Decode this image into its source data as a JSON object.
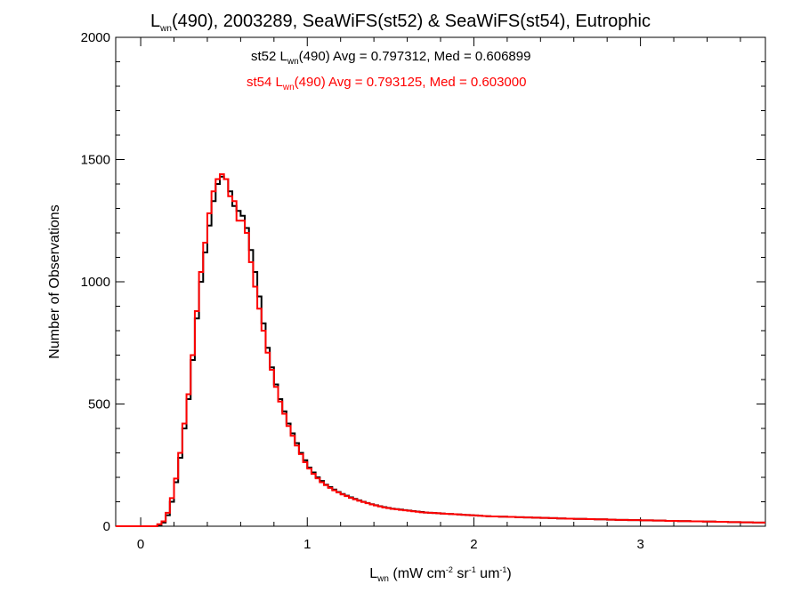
{
  "chart_data": {
    "type": "line",
    "title": {
      "base": "L",
      "sub": "wn",
      "rest": "(490), 2003289, SeaWiFS(st52) & SeaWiFS(st54), Eutrophic"
    },
    "xlabel": {
      "base": "L",
      "sub": "wn",
      "p1": " (mW cm",
      "sup1": "-2",
      "p2": " sr",
      "sup2": "-1",
      "p3": " um",
      "sup3": "-1",
      "p4": ")"
    },
    "ylabel": "Number of Observations",
    "xlim": [
      -0.15,
      3.75
    ],
    "ylim": [
      0,
      2000
    ],
    "xticks": [
      0,
      1,
      2,
      3
    ],
    "xtick_labels": [
      "0",
      "1",
      "2",
      "3"
    ],
    "yticks": [
      0,
      500,
      1000,
      1500,
      2000
    ],
    "ytick_labels": [
      "0",
      "500",
      "1000",
      "1500",
      "2000"
    ],
    "bin_width": 0.025,
    "x_start": -0.15,
    "series": [
      {
        "label_key": "st52",
        "color": "#000000",
        "annotation": {
          "prefix": "st52 L",
          "sub": "wn",
          "rest": "(490) Avg = 0.797312, Med = 0.606899"
        },
        "values": [
          0,
          0,
          0,
          0,
          0,
          0,
          0,
          0,
          0,
          0,
          5,
          15,
          45,
          100,
          180,
          280,
          400,
          520,
          680,
          850,
          1000,
          1120,
          1230,
          1330,
          1400,
          1430,
          1420,
          1370,
          1310,
          1290,
          1270,
          1220,
          1130,
          1040,
          940,
          830,
          730,
          650,
          580,
          520,
          470,
          420,
          380,
          340,
          300,
          270,
          240,
          220,
          200,
          185,
          170,
          160,
          150,
          140,
          132,
          125,
          118,
          112,
          106,
          100,
          95,
          90,
          86,
          82,
          78,
          75,
          72,
          70,
          68,
          66,
          64,
          62,
          60,
          58,
          56,
          55,
          54,
          53,
          52,
          51,
          50,
          49,
          48,
          47,
          46,
          45,
          44,
          43,
          42,
          41,
          40,
          40,
          39,
          39,
          38,
          38,
          37,
          37,
          36,
          36,
          35,
          35,
          34,
          34,
          33,
          33,
          32,
          32,
          31,
          31,
          30,
          30,
          30,
          29,
          29,
          28,
          28,
          28,
          27,
          27,
          26,
          26,
          26,
          25,
          25,
          25,
          24,
          24,
          24,
          23,
          23,
          23,
          22,
          22,
          22,
          21,
          21,
          21,
          20,
          20,
          20,
          19,
          19,
          19,
          18,
          18,
          18,
          17,
          17,
          17,
          16,
          16,
          16,
          15,
          15,
          15
        ]
      },
      {
        "label_key": "st54",
        "color": "#ff0000",
        "annotation": {
          "prefix": "st54 L",
          "sub": "wn",
          "rest": "(490) Avg = 0.793125, Med = 0.603000"
        },
        "values": [
          0,
          0,
          0,
          0,
          0,
          0,
          0,
          0,
          0,
          0,
          8,
          20,
          55,
          115,
          195,
          300,
          420,
          540,
          700,
          880,
          1040,
          1160,
          1280,
          1370,
          1420,
          1440,
          1420,
          1350,
          1330,
          1250,
          1250,
          1200,
          1080,
          980,
          890,
          800,
          710,
          640,
          570,
          510,
          460,
          410,
          370,
          330,
          295,
          262,
          236,
          214,
          196,
          180,
          168,
          157,
          147,
          138,
          130,
          123,
          116,
          110,
          104,
          99,
          94,
          89,
          85,
          81,
          77,
          74,
          71,
          69,
          67,
          65,
          63,
          61,
          59,
          57,
          56,
          55,
          54,
          53,
          52,
          51,
          50,
          49,
          48,
          47,
          46,
          45,
          44,
          43,
          42,
          41,
          40,
          40,
          39,
          39,
          38,
          38,
          37,
          37,
          36,
          36,
          35,
          35,
          34,
          34,
          33,
          33,
          32,
          32,
          31,
          31,
          30,
          30,
          30,
          29,
          29,
          28,
          28,
          28,
          27,
          27,
          26,
          26,
          26,
          25,
          25,
          25,
          24,
          24,
          24,
          23,
          23,
          23,
          22,
          22,
          22,
          21,
          21,
          21,
          20,
          20,
          20,
          19,
          19,
          19,
          18,
          18,
          18,
          17,
          17,
          17,
          16,
          16,
          16,
          15,
          15,
          15
        ]
      }
    ]
  }
}
